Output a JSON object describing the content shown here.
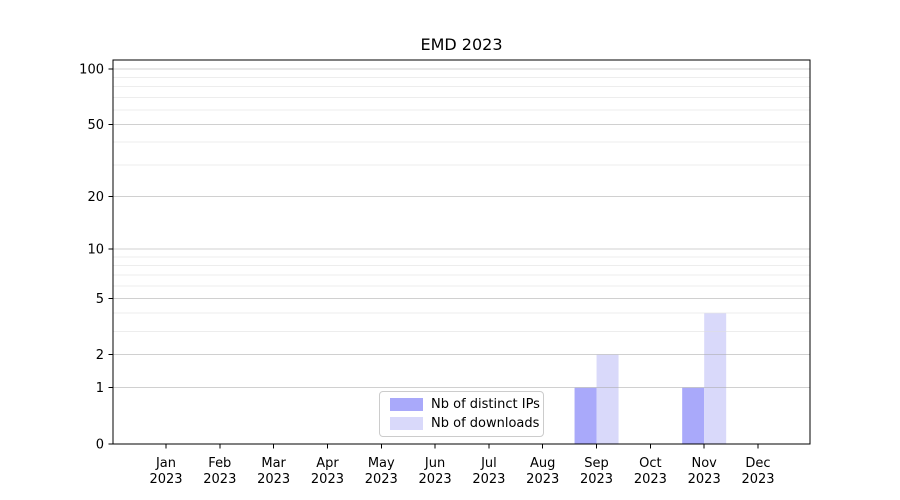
{
  "chart_data": {
    "type": "bar",
    "title": "EMD 2023",
    "x_categories": [
      "Jan 2023",
      "Feb 2023",
      "Mar 2023",
      "Apr 2023",
      "May 2023",
      "Jun 2023",
      "Jul 2023",
      "Aug 2023",
      "Sep 2023",
      "Oct 2023",
      "Nov 2023",
      "Dec 2023"
    ],
    "series": [
      {
        "name": "Nb of distinct IPs",
        "color": "#a9a9fa",
        "values": [
          0,
          0,
          0,
          0,
          0,
          0,
          0,
          0,
          1,
          0,
          1,
          0
        ]
      },
      {
        "name": "Nb of downloads",
        "color": "#d9d9fa",
        "values": [
          0,
          0,
          0,
          0,
          0,
          0,
          0,
          0,
          2,
          0,
          4,
          0
        ]
      }
    ],
    "y_scale": "log10(1+y)",
    "y_ticks": [
      0,
      1,
      2,
      5,
      10,
      20,
      50,
      100
    ],
    "y_minor_gridlines": [
      3,
      4,
      6,
      7,
      8,
      9,
      30,
      40,
      60,
      70,
      80,
      90
    ],
    "ylim": [
      0,
      112
    ],
    "grid": "horizontal",
    "legend_position": "lower center",
    "colors": {
      "major_grid": "#d4d4d4",
      "minor_grid": "#eeeeee",
      "axis": "#000000",
      "background": "#ffffff"
    }
  }
}
